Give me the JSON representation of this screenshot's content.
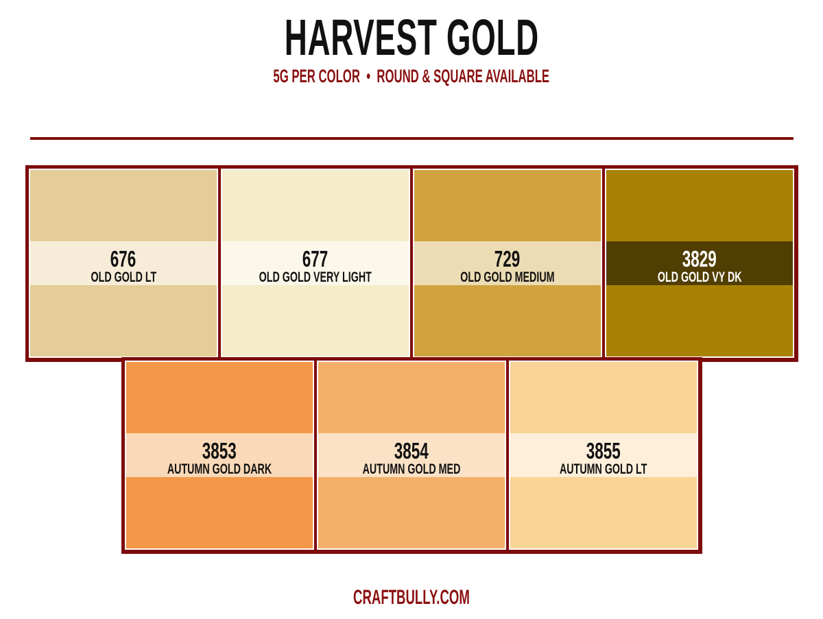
{
  "header": {
    "title": "HARVEST GOLD",
    "subtitle": "5G PER COLOR  •  ROUND & SQUARE AVAILABLE"
  },
  "rows": [
    [
      {
        "code": "676",
        "name": "OLD GOLD LT",
        "color": "#e5cd99",
        "band_color": "#f6ecd8",
        "text_color": "#111111"
      },
      {
        "code": "677",
        "name": "OLD GOLD VERY LIGHT",
        "color": "#f5ecca",
        "band_color": "#fbf7ea",
        "text_color": "#111111"
      },
      {
        "code": "729",
        "name": "OLD GOLD MEDIUM",
        "color": "#d0a33e",
        "band_color": "#ecdcb4",
        "text_color": "#111111"
      },
      {
        "code": "3829",
        "name": "OLD GOLD VY DK",
        "color": "#a98204",
        "band_color": "#503e02",
        "text_color": "#ffffff"
      }
    ],
    [
      {
        "code": "3853",
        "name": "AUTUMN GOLD DARK",
        "color": "#f29848",
        "band_color": "#fad9b8",
        "text_color": "#111111"
      },
      {
        "code": "3854",
        "name": "AUTUMN GOLD MED",
        "color": "#f2b06a",
        "band_color": "#fbe2c6",
        "text_color": "#111111"
      },
      {
        "code": "3855",
        "name": "AUTUMN GOLD LT",
        "color": "#f9d496",
        "band_color": "#fdefda",
        "text_color": "#111111"
      }
    ]
  ],
  "footer": {
    "site": "CRAFTBULLY.COM"
  }
}
